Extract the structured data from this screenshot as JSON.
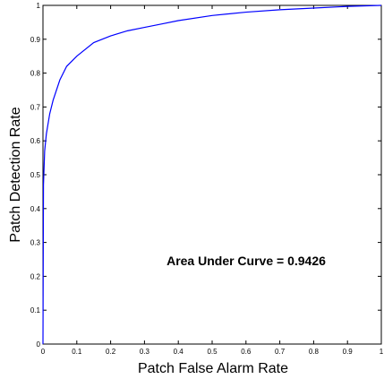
{
  "chart_data": {
    "type": "line",
    "xlabel": "Patch False Alarm Rate",
    "ylabel": "Patch Detection Rate",
    "xlim": [
      0,
      1
    ],
    "ylim": [
      0,
      1
    ],
    "x_ticks": [
      0,
      0.1,
      0.2,
      0.3,
      0.4,
      0.5,
      0.6,
      0.7,
      0.8,
      0.9,
      1
    ],
    "x_tick_labels": [
      "0",
      "0.1",
      "0.2",
      "0.3",
      "0.4",
      "0.5",
      "0.6",
      "0.7",
      "0.8",
      "0.9",
      "1"
    ],
    "y_ticks": [
      0,
      0.1,
      0.2,
      0.3,
      0.4,
      0.5,
      0.6,
      0.7,
      0.8,
      0.9,
      1
    ],
    "y_tick_labels": [
      "0",
      "0.1",
      "0.2",
      "0.3",
      "0.4",
      "0.5",
      "0.6",
      "0.7",
      "0.8",
      "0.9",
      "1"
    ],
    "grid": false,
    "line_color": "#0000ff",
    "annotation": "Area Under Curve = 0.9426",
    "series": [
      {
        "x": [
          0,
          0.0015,
          0.005,
          0.01,
          0.02,
          0.03,
          0.05,
          0.07,
          0.1,
          0.15,
          0.2,
          0.25,
          0.3,
          0.35,
          0.4,
          0.5,
          0.6,
          0.7,
          0.8,
          0.9,
          1.0
        ],
        "y": [
          0,
          0.47,
          0.57,
          0.62,
          0.68,
          0.72,
          0.78,
          0.82,
          0.85,
          0.89,
          0.91,
          0.925,
          0.935,
          0.945,
          0.955,
          0.97,
          0.98,
          0.987,
          0.992,
          0.997,
          1.0
        ]
      }
    ]
  }
}
